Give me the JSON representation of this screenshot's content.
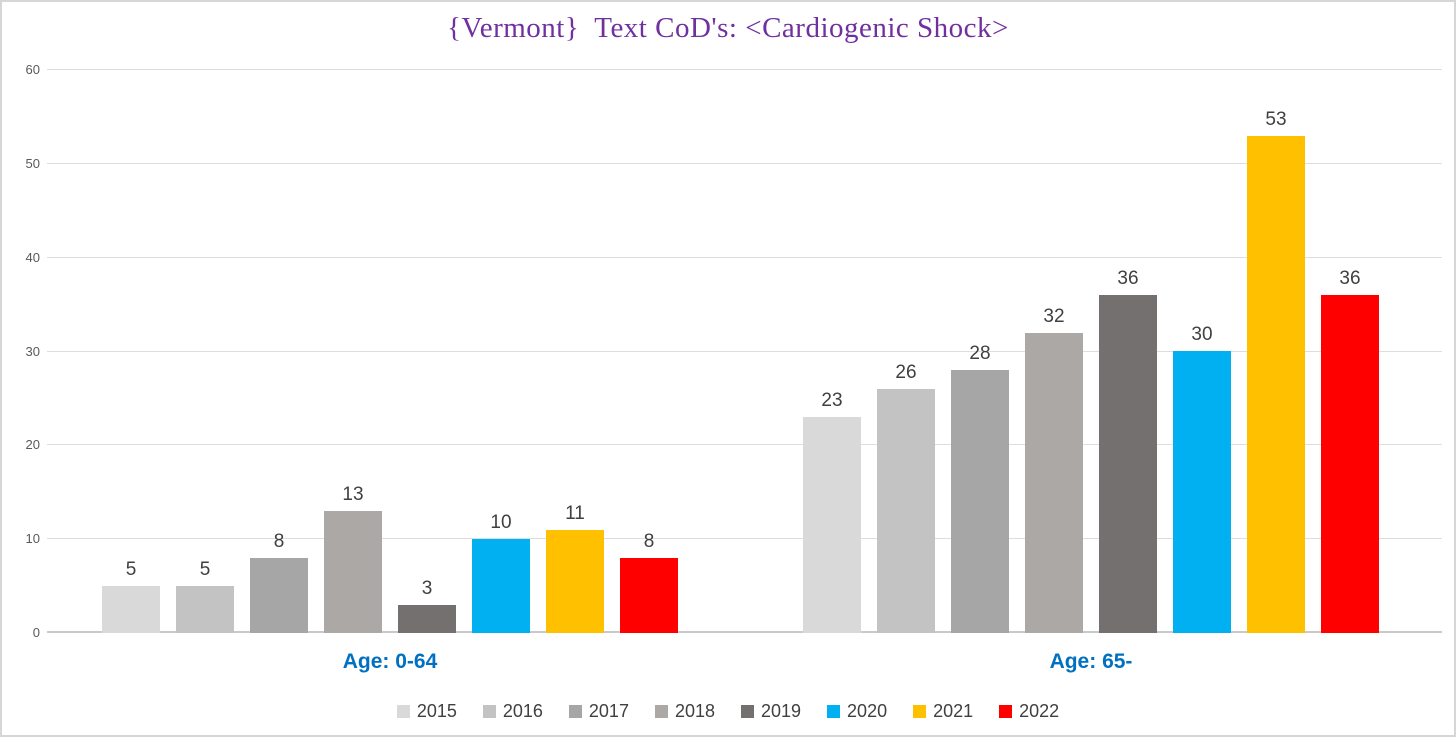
{
  "title": "{Vermont}  Text CoD's: <Cardiogenic Shock>",
  "colors": {
    "title_text": "#7030A0",
    "category_label_text": "#0070C0",
    "data_label_text": "#404040",
    "axis_tick_text": "#595959",
    "gridline": "#DEDEDE",
    "baseline": "#C9C9C9",
    "chart_border": "#D6D6D6"
  },
  "chart_data": {
    "type": "bar",
    "title": "{Vermont}  Text CoD's: <Cardiogenic Shock>",
    "categories": [
      "Age: 0-64",
      "Age: 65-"
    ],
    "series": [
      {
        "name": "2015",
        "color": "#D9D9D9",
        "values": [
          5,
          23
        ]
      },
      {
        "name": "2016",
        "color": "#C3C3C3",
        "values": [
          5,
          26
        ]
      },
      {
        "name": "2017",
        "color": "#A6A6A6",
        "values": [
          8,
          28
        ]
      },
      {
        "name": "2018",
        "color": "#ACA8A5",
        "values": [
          13,
          32
        ]
      },
      {
        "name": "2019",
        "color": "#747070",
        "values": [
          3,
          36
        ]
      },
      {
        "name": "2020",
        "color": "#00B0F0",
        "values": [
          10,
          30
        ]
      },
      {
        "name": "2021",
        "color": "#FFC000",
        "values": [
          11,
          53
        ]
      },
      {
        "name": "2022",
        "color": "#FF0000",
        "values": [
          8,
          36
        ]
      }
    ],
    "ylim": [
      0,
      60
    ],
    "yticks": [
      0,
      10,
      20,
      30,
      40,
      50,
      60
    ],
    "xlabel": "",
    "ylabel": "",
    "grid": true,
    "data_labels": true,
    "legend_position": "bottom"
  }
}
